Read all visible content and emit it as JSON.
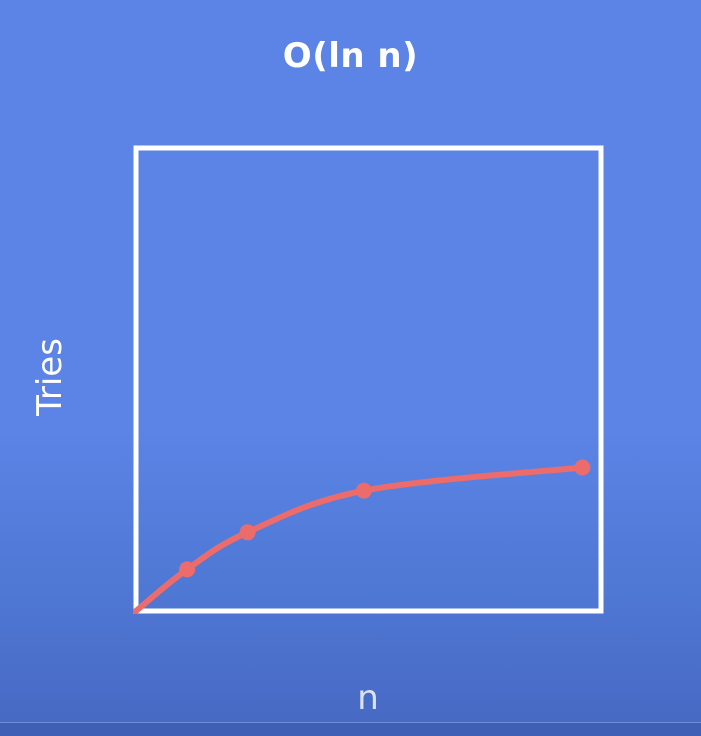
{
  "chart_data": {
    "type": "line",
    "title": "O(ln n)",
    "xlabel": "n",
    "ylabel": "Tries",
    "grid": false,
    "legend": "none",
    "xlim": [
      0,
      10
    ],
    "ylim": [
      0,
      10
    ],
    "series": [
      {
        "x": [
          0,
          1.1,
          2.4,
          4.9,
          9.6
        ],
        "y": [
          0,
          0.9,
          1.7,
          2.6,
          3.1
        ],
        "markers": [
          false,
          true,
          true,
          true,
          true
        ]
      }
    ]
  },
  "colors": {
    "background": "#5b84e6",
    "frame": "#ffffff",
    "line": "#ec6b6b"
  }
}
